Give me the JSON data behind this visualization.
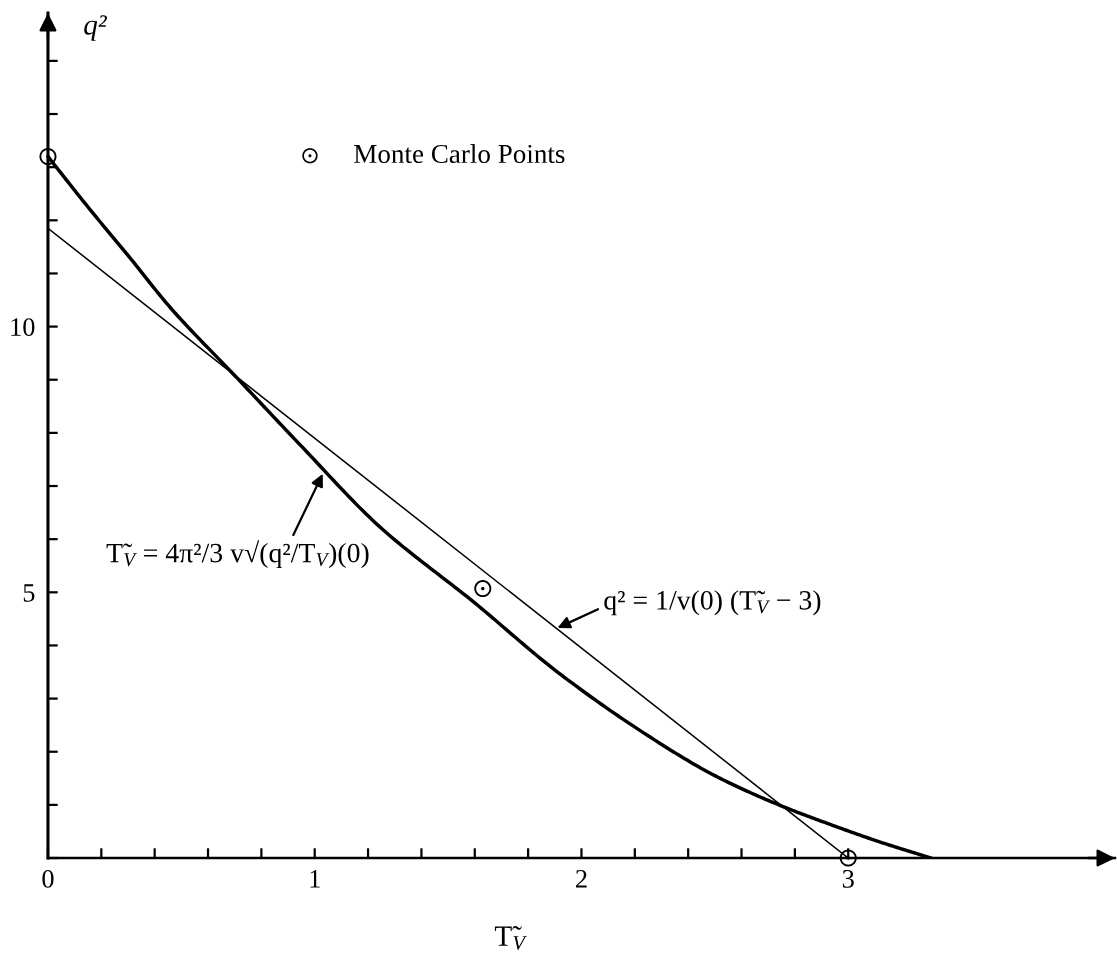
{
  "chart_data": {
    "type": "line",
    "xlabel": "T̃$_{V}$",
    "ylabel": "q²",
    "xlim": [
      0,
      4.0
    ],
    "ylim": [
      0,
      15.9
    ],
    "xticks": [
      0,
      {
        "value": 0.2,
        "label": null
      },
      {
        "value": 0.4,
        "label": null
      },
      {
        "value": 0.6,
        "label": null
      },
      {
        "value": 0.8,
        "label": null
      },
      1,
      {
        "value": 1.2,
        "label": null
      },
      {
        "value": 1.4,
        "label": null
      },
      {
        "value": 1.6,
        "label": null
      },
      {
        "value": 1.8,
        "label": null
      },
      2,
      {
        "value": 2.2,
        "label": null
      },
      {
        "value": 2.4,
        "label": null
      },
      {
        "value": 2.6,
        "label": null
      },
      {
        "value": 2.8,
        "label": null
      },
      3
    ],
    "yticks": [
      {
        "value": 0,
        "label": null
      },
      {
        "value": 1,
        "label": null
      },
      {
        "value": 2,
        "label": null
      },
      {
        "value": 3,
        "label": null
      },
      {
        "value": 4,
        "label": null
      },
      5,
      {
        "value": 6,
        "label": null
      },
      {
        "value": 7,
        "label": null
      },
      {
        "value": 8,
        "label": null
      },
      {
        "value": 9,
        "label": null
      },
      10,
      {
        "value": 11,
        "label": null
      },
      {
        "value": 12,
        "label": null
      },
      {
        "value": 13,
        "label": null
      },
      {
        "value": 14,
        "label": null
      },
      {
        "value": 15,
        "label": null
      }
    ],
    "series": [
      {
        "color": "#000000",
        "x": [
          0,
          0.15,
          0.3,
          0.46,
          0.7,
          0.95,
          1.24,
          1.6,
          1.91,
          2.25,
          2.5,
          2.74,
          2.95,
          3.12,
          3.31
        ],
        "values": [
          13.2,
          12.25,
          11.34,
          10.35,
          9.08,
          7.75,
          6.25,
          4.8,
          3.5,
          2.3,
          1.55,
          1.0,
          0.6,
          0.3,
          0
        ]
      },
      {
        "color": "#000000",
        "x": [
          0,
          3
        ],
        "values": [
          11.85,
          0
        ]
      },
      {
        "type": "scatter",
        "name": "Monte Carlo Points",
        "color": "#000000",
        "marker": "circle",
        "x": [
          0,
          1.63,
          3
        ],
        "values": [
          13.2,
          5.07,
          0
        ]
      }
    ],
    "annotations": [
      {
        "text": "T̃$_{V}$ = 4π²/3 v√(q²/T$_{V}$)(0)",
        "x": 1.03,
        "y": 7.23
      },
      {
        "text": "q² = 1/v(0) (T̃$_{V}$ − 3)",
        "x": 1.91,
        "y": 4.33
      }
    ],
    "legend": "top left",
    "grid": false
  }
}
